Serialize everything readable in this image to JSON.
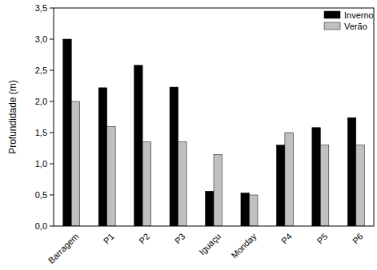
{
  "chart_data": {
    "type": "bar",
    "y_label": "Profundidade (m)",
    "categories": [
      "Barragem",
      "P1",
      "P2",
      "P3",
      "Iguaçu",
      "Monday",
      "P4",
      "P5",
      "P6"
    ],
    "series": [
      {
        "name": "Inverno",
        "color": "#000000",
        "values": [
          3.0,
          2.22,
          2.58,
          2.23,
          0.56,
          0.53,
          1.3,
          1.58,
          1.74
        ]
      },
      {
        "name": "Verão",
        "color": "#c0c0c0",
        "values": [
          2.0,
          1.6,
          1.35,
          1.35,
          1.15,
          0.5,
          1.5,
          1.3,
          1.3
        ]
      }
    ],
    "ylim": [
      0,
      3.5
    ],
    "yticks": [
      {
        "value": 0,
        "label": "0,0"
      },
      {
        "value": 0.5,
        "label": "0,5"
      },
      {
        "value": 1,
        "label": "1,0"
      },
      {
        "value": 1.5,
        "label": "1,5"
      },
      {
        "value": 2,
        "label": "2,0"
      },
      {
        "value": 2.5,
        "label": "2,5"
      },
      {
        "value": 3,
        "label": "3,0"
      },
      {
        "value": 3.5,
        "label": "3,5"
      }
    ],
    "legend": "upper-right",
    "grid": false
  }
}
